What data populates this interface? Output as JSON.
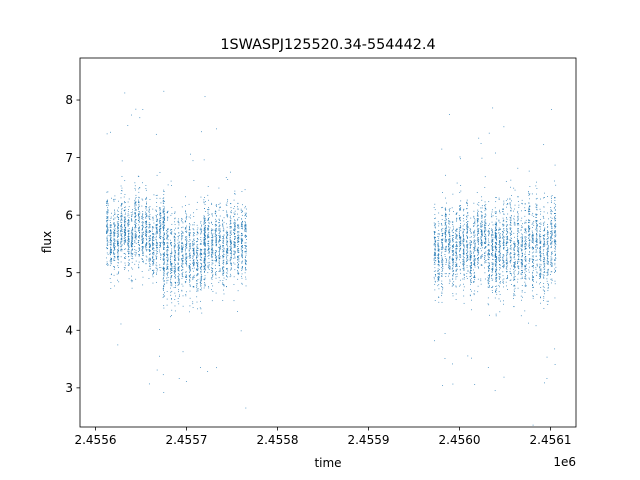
{
  "chart_data": {
    "type": "scatter",
    "title": "1SWASPJ125520.34-554442.4",
    "xlabel": "time",
    "ylabel": "flux",
    "x_offset_label": "1e6",
    "x_ticks": [
      "2.4556",
      "2.4557",
      "2.4558",
      "2.4559",
      "2.4560",
      "2.4561"
    ],
    "y_ticks": [
      "3",
      "4",
      "5",
      "6",
      "7",
      "8"
    ],
    "xlim": [
      2455583,
      2456128
    ],
    "ylim": [
      2.32,
      8.73
    ],
    "grid": false,
    "legend": "none",
    "marker_color": "#1f77b4",
    "series": [
      {
        "segments": [
          {
            "time": [
              2455613,
              2455675
            ],
            "flux_center": 5.7,
            "flux_spread": 0.55
          },
          {
            "time": [
              2455675,
              2455720
            ],
            "flux_center": 5.4,
            "flux_spread": 0.65
          },
          {
            "time": [
              2455720,
              2455765
            ],
            "flux_center": 5.45,
            "flux_spread": 0.6
          },
          {
            "time": [
              2455973,
              2456040
            ],
            "flux_center": 5.45,
            "flux_spread": 0.6
          },
          {
            "time": [
              2456040,
              2456105
            ],
            "flux_center": 5.5,
            "flux_spread": 0.7
          }
        ]
      }
    ]
  }
}
